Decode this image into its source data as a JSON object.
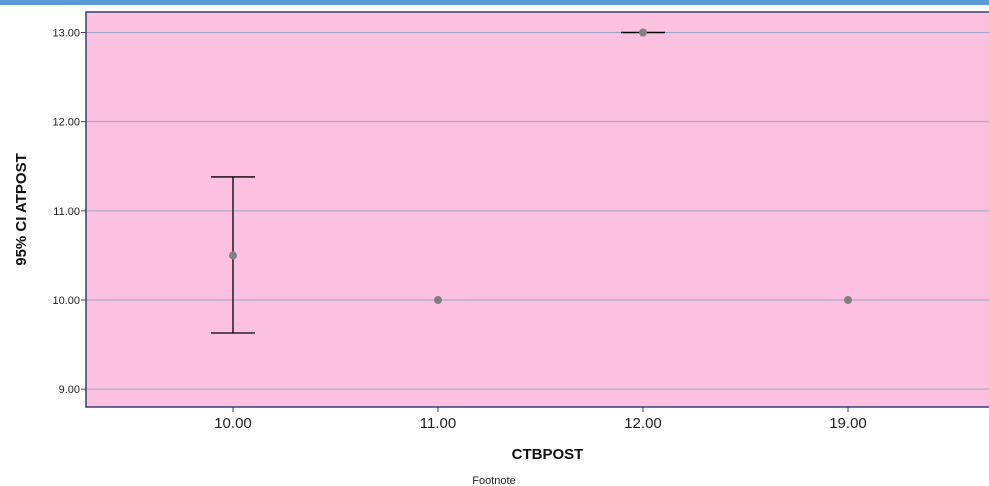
{
  "colors": {
    "top_bar": "#5b9bd5",
    "plot_background": "#fcc0e0",
    "gridline": "#9aa6c4",
    "frame": "#3d3d70",
    "point": "#808080",
    "error_bar": "#000000"
  },
  "footnote": "Footnote",
  "chart_data": {
    "type": "scatter",
    "subtype": "error-bar",
    "xlabel": "CTBPOST",
    "ylabel": "95% CI ATPOST",
    "categories": [
      "10.00",
      "11.00",
      "12.00",
      "19.00"
    ],
    "y_ticks": [
      "9.00",
      "10.00",
      "11.00",
      "12.00",
      "13.00"
    ],
    "ylim": [
      8.8,
      13.23
    ],
    "grid": true,
    "points": [
      {
        "category": "10.00",
        "mean": 10.5,
        "lower": 9.63,
        "upper": 11.38
      },
      {
        "category": "11.00",
        "mean": 10.0,
        "lower": 10.0,
        "upper": 10.0
      },
      {
        "category": "12.00",
        "mean": 13.0,
        "lower": 13.0,
        "upper": 13.0
      },
      {
        "category": "19.00",
        "mean": 10.0,
        "lower": 10.0,
        "upper": 10.0
      }
    ]
  }
}
